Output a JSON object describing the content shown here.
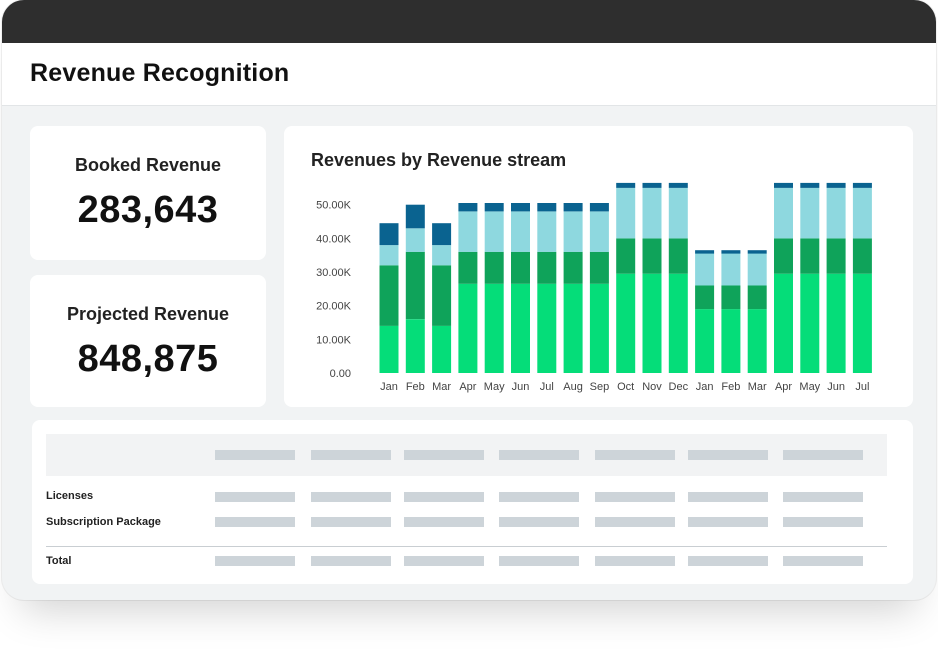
{
  "header": {
    "title": "Revenue Recognition"
  },
  "kpis": {
    "booked": {
      "label": "Booked Revenue",
      "value": "283,643"
    },
    "projected": {
      "label": "Projected Revenue",
      "value": "848,875"
    }
  },
  "chart_data": {
    "type": "bar",
    "stacked": true,
    "title": "Revenues by Revenue stream",
    "categories": [
      "Jan",
      "Feb",
      "Mar",
      "Apr",
      "May",
      "Jun",
      "Jul",
      "Aug",
      "Sep",
      "Oct",
      "Nov",
      "Dec",
      "Jan",
      "Feb",
      "Mar",
      "Apr",
      "May",
      "Jun",
      "Jul"
    ],
    "y_ticks": [
      "0.00",
      "10.00K",
      "20.00K",
      "30.00K",
      "40.00K",
      "50.00K"
    ],
    "ylim": [
      0,
      52000
    ],
    "grid": false,
    "colors": [
      "#05dd79",
      "#0fa35a",
      "#8ed8df",
      "#0a6390"
    ],
    "series": [
      {
        "values": [
          14000,
          16000,
          14000,
          26500,
          26500,
          26500,
          26500,
          26500,
          26500,
          29500,
          29500,
          29500,
          19000,
          19000,
          19000,
          29500,
          29500,
          29500,
          29500
        ]
      },
      {
        "values": [
          18000,
          20000,
          18000,
          9500,
          9500,
          9500,
          9500,
          9500,
          9500,
          10500,
          10500,
          10500,
          7000,
          7000,
          7000,
          10500,
          10500,
          10500,
          10500
        ]
      },
      {
        "values": [
          6000,
          7000,
          6000,
          12000,
          12000,
          12000,
          12000,
          12000,
          12000,
          15000,
          15000,
          15000,
          9500,
          9500,
          9500,
          15000,
          15000,
          15000,
          15000
        ]
      },
      {
        "values": [
          6500,
          7000,
          6500,
          2500,
          2500,
          2500,
          2500,
          2500,
          2500,
          1500,
          1500,
          1500,
          1000,
          1000,
          1000,
          1500,
          1500,
          1500,
          1500
        ]
      }
    ]
  },
  "table": {
    "rows": [
      {
        "label": "Licenses"
      },
      {
        "label": "Subscription Package"
      }
    ],
    "total_label": "Total"
  }
}
